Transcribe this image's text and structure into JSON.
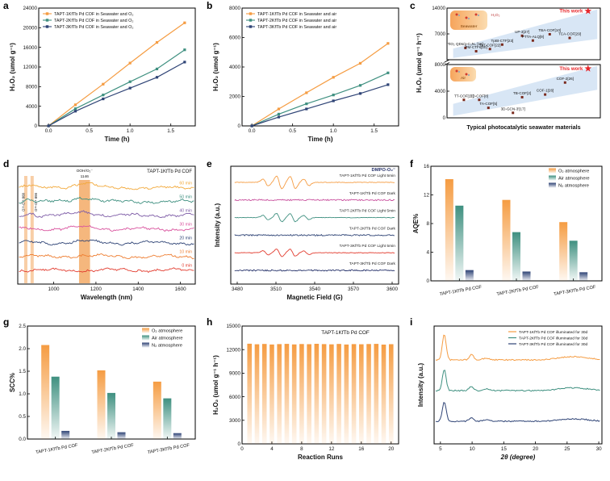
{
  "letters": {
    "a": "a",
    "b": "b",
    "c": "c",
    "d": "d",
    "e": "e",
    "f": "f",
    "g": "g",
    "h": "h",
    "i": "i"
  },
  "chart_data": [
    {
      "id": "a",
      "type": "line",
      "xlabel": "Time (h)",
      "ylabel": "H₂O₂ (umol g⁻¹)",
      "xlim": [
        -0.12,
        1.8
      ],
      "ylim": [
        0,
        24000
      ],
      "xticks": [
        0,
        0.5,
        1,
        1.5
      ],
      "yticks": [
        0,
        4000,
        8000,
        12000,
        16000,
        20000,
        24000
      ],
      "x": [
        0,
        0.33,
        0.67,
        1,
        1.33,
        1.67
      ],
      "series": [
        {
          "name": "TAPT-1KfTb Pd COF in Seawater and O₂",
          "color": "#F59C42",
          "values": [
            0,
            4300,
            8500,
            12800,
            17000,
            21000
          ]
        },
        {
          "name": "TAPT-2KfTb Pd COF in Seawater and O₂",
          "color": "#3F9080",
          "values": [
            0,
            3500,
            6300,
            9000,
            11600,
            15500
          ]
        },
        {
          "name": "TAPT-3KfTb Pd COF in Seawater and O₂",
          "color": "#2F4476",
          "values": [
            0,
            3000,
            5500,
            7700,
            9900,
            13000
          ]
        }
      ]
    },
    {
      "id": "b",
      "type": "line",
      "xlabel": "Time (h)",
      "ylabel": "H₂O₂ (umol g⁻¹)",
      "xlim": [
        -0.12,
        1.8
      ],
      "ylim": [
        0,
        8000
      ],
      "xticks": [
        0,
        0.5,
        1,
        1.5
      ],
      "yticks": [
        0,
        2000,
        4000,
        6000,
        8000
      ],
      "x": [
        0,
        0.33,
        0.67,
        1,
        1.33,
        1.67
      ],
      "series": [
        {
          "name": "TAPT-1KfTb Pd COF in Seawater and air",
          "color": "#F59C42",
          "values": [
            0,
            1150,
            2250,
            3300,
            4250,
            5600
          ]
        },
        {
          "name": "TAPT-2KfTb Pd COF in Seawater and air",
          "color": "#3F9080",
          "values": [
            0,
            800,
            1500,
            2100,
            2750,
            3600
          ]
        },
        {
          "name": "TAPT-3KfTb Pd COF in Seawater and air",
          "color": "#2F4476",
          "values": [
            0,
            600,
            1150,
            1700,
            2200,
            2800
          ]
        }
      ]
    },
    {
      "id": "c",
      "type": "scatter-broken",
      "xlabel": "Typical photocatalytic seawater materials",
      "ylabel": "H₂O₂ (umol g⁻¹ h⁻¹)",
      "sections": [
        {
          "name": "seawater",
          "ylim": [
            0,
            14000
          ],
          "yticks": [
            7000,
            14000
          ],
          "inset": {
            "label": "Seawater",
            "sub": "H₂O₂"
          },
          "band": [
            [
              0.4,
              500
            ],
            [
              9.8,
              5600
            ],
            [
              9.8,
              13600
            ],
            [
              0.4,
              3000
            ]
          ],
          "points": [
            {
              "label": "TiO₂ QDs/g-C₃N₄ [18]",
              "x": 1.2,
              "y": 3200
            },
            {
              "label": "PM-CTFs[20]",
              "x": 1.9,
              "y": 2300
            },
            {
              "label": "TpT-COF[22]",
              "x": 2.8,
              "y": 2900
            },
            {
              "label": "TpBt-CTF[23]",
              "x": 3.6,
              "y": 4100
            },
            {
              "label": "UP-3[27]",
              "x": 4.9,
              "y": 6500
            },
            {
              "label": "PTTA-ALQ[9]",
              "x": 5.6,
              "y": 5200
            },
            {
              "label": "TBA-COF[10]",
              "x": 6.7,
              "y": 6900
            },
            {
              "label": "TCA-COF[29]",
              "x": 8.0,
              "y": 5900
            }
          ],
          "star": {
            "label": "This work",
            "x": 9.2,
            "y": 13200
          }
        },
        {
          "name": "air",
          "ylim": [
            0,
            8000
          ],
          "yticks": [
            0,
            4000,
            8000
          ],
          "inset": {
            "label": "Air"
          },
          "band": [
            [
              0.4,
              300
            ],
            [
              9.8,
              4200
            ],
            [
              9.8,
              7800
            ],
            [
              0.4,
              2100
            ]
          ],
          "points": [
            {
              "label": "TT-COF[11]",
              "x": 1.1,
              "y": 2700
            },
            {
              "label": "TD-COF[8]",
              "x": 2.1,
              "y": 2700
            },
            {
              "label": "TA-COF[5]",
              "x": 2.7,
              "y": 1500
            },
            {
              "label": "3D-GCN-3'[17]",
              "x": 4.3,
              "y": 750
            },
            {
              "label": "TB-COF[2]",
              "x": 4.9,
              "y": 3100
            },
            {
              "label": "COF-1[26]",
              "x": 6.4,
              "y": 3500
            },
            {
              "label": "COF-2[26]",
              "x": 7.7,
              "y": 5300
            }
          ],
          "star": {
            "label": "This work",
            "x": 9.2,
            "y": 7400
          }
        }
      ]
    },
    {
      "id": "d",
      "type": "spectra",
      "title": "TAPT-1KfTb Pd COF",
      "xlabel": "Wavelength (nm)",
      "xlim": [
        830,
        1670
      ],
      "xticks": [
        1000,
        1200,
        1400,
        1600
      ],
      "bands": [
        {
          "center": 868,
          "width": 14,
          "label": "O¹⁸-O¹⁸",
          "value": "868"
        },
        {
          "center": 898,
          "width": 14,
          "label": "O¹⁶-O¹⁶",
          "value": "898"
        },
        {
          "center": 1146,
          "width": 52,
          "label": "OOH/O₂⁻",
          "value": "1146"
        }
      ],
      "curves": [
        {
          "label": "0 min",
          "color": "#E23B2E"
        },
        {
          "label": "10 min",
          "color": "#EE7E32"
        },
        {
          "label": "20 min",
          "color": "#2F4476"
        },
        {
          "label": "30 min",
          "color": "#D9539E"
        },
        {
          "label": "40 min",
          "color": "#7D5BA6"
        },
        {
          "label": "50 min",
          "color": "#3F9080"
        },
        {
          "label": "60 min",
          "color": "#F2A93B"
        }
      ]
    },
    {
      "id": "e",
      "type": "epr",
      "title": "DMPO-O₂⁻",
      "xlabel": "Magnetic Field (G)",
      "ylabel": "Intensity (a.u.)",
      "xlim": [
        3475,
        3605
      ],
      "xticks": [
        3480,
        3510,
        3540,
        3570,
        3600
      ],
      "curves": [
        {
          "label": "TAPT-1KfTb Pd COF Light 5min",
          "color": "#F59C42",
          "amp": 13,
          "kind": "light"
        },
        {
          "label": "TAPT-1KfTb Pd COF Dark",
          "color": "#C9519E",
          "amp": 0.7,
          "kind": "dark"
        },
        {
          "label": "TAPT-2KfTb Pd COF Light 5min",
          "color": "#3F9080",
          "amp": 8.5,
          "kind": "light"
        },
        {
          "label": "TAPT-2KfTb Pd COF Dark",
          "color": "#2F4476",
          "amp": 0.7,
          "kind": "dark"
        },
        {
          "label": "TAPT-3KfTb Pd COF Light 5min",
          "color": "#E23B2E",
          "amp": 7.5,
          "kind": "light"
        },
        {
          "label": "TAPT-3KfTb Pd COF Dark",
          "color": "#27336B",
          "amp": 0.7,
          "kind": "dark"
        }
      ]
    },
    {
      "id": "f",
      "type": "grouped-bar",
      "ylabel": "AQE%",
      "ylim": [
        0,
        16
      ],
      "yticks": [
        0,
        4,
        8,
        12,
        16
      ],
      "categories": [
        "TAPT-1KfTb Pd COF",
        "TAPT-2KfTb Pd COF",
        "TAPT-3KfTb Pd COF"
      ],
      "series": [
        {
          "name": "O₂ atmosphere",
          "color": "#F59C42",
          "values": [
            14.2,
            11.3,
            8.2
          ]
        },
        {
          "name": "Air atmosphere",
          "color": "#3F9080",
          "values": [
            10.5,
            6.8,
            5.6
          ]
        },
        {
          "name": "N₂ atmosphere",
          "color": "#2F4476",
          "values": [
            1.5,
            1.3,
            1.2
          ]
        }
      ]
    },
    {
      "id": "g",
      "type": "grouped-bar",
      "ylabel": "SCC%",
      "ylim": [
        0,
        2.5
      ],
      "yticks": [
        0,
        0.5,
        1,
        1.5,
        2,
        2.5
      ],
      "ytickfmt": "1f",
      "categories": [
        "TAPT-1KfTb Pd COF",
        "TAPT-2KfTb Pd COF",
        "TAPT-3KfTb Pd COF"
      ],
      "series": [
        {
          "name": "O₂ atmosphere",
          "color": "#F59C42",
          "values": [
            2.08,
            1.52,
            1.27
          ]
        },
        {
          "name": "Air atmosphere",
          "color": "#3F9080",
          "values": [
            1.38,
            1.02,
            0.9
          ]
        },
        {
          "name": "N₂ atmosphere",
          "color": "#2F4476",
          "values": [
            0.18,
            0.15,
            0.13
          ]
        }
      ]
    },
    {
      "id": "h",
      "type": "bar-runs",
      "title": "TAPT-1KfTb Pd COF",
      "xlabel": "Reaction Runs",
      "ylabel": "H₂O₂ (umol g⁻¹ h⁻¹)",
      "color": "#F59C42",
      "ylim": [
        0,
        15000
      ],
      "yticks": [
        0,
        3000,
        6000,
        9000,
        12000,
        15000
      ],
      "xticks": [
        0,
        4,
        8,
        12,
        16,
        20
      ],
      "values": [
        12750,
        12680,
        12720,
        12650,
        12700,
        12730,
        12660,
        12710,
        12690,
        12740,
        12700,
        12670,
        12720,
        12650,
        12700,
        12680,
        12710,
        12730,
        12640,
        12690
      ]
    },
    {
      "id": "i",
      "type": "xrd",
      "xlabel": "2θ (degree)",
      "ylabel": "Intensity (a.u.)",
      "xlim": [
        4,
        30.5
      ],
      "xticks": [
        5,
        10,
        15,
        20,
        25,
        30
      ],
      "curves": [
        {
          "label": "TAPT-1KfTb Pd COF illuminated for 30d",
          "color": "#F59C42"
        },
        {
          "label": "TAPT-2KfTb Pd COF illuminated for 30d",
          "color": "#3F9080"
        },
        {
          "label": "TAPT-3KfTb Pd COF illuminated for 30d",
          "color": "#2F4476"
        }
      ],
      "peaks": [
        {
          "x": 5.6,
          "h": 1,
          "w": 0.3
        },
        {
          "x": 9.9,
          "h": 0.2,
          "w": 0.35
        },
        {
          "x": 12.2,
          "h": 0.07,
          "w": 0.5
        },
        {
          "x": 26,
          "h": 0.13,
          "w": 2.2
        }
      ]
    }
  ]
}
